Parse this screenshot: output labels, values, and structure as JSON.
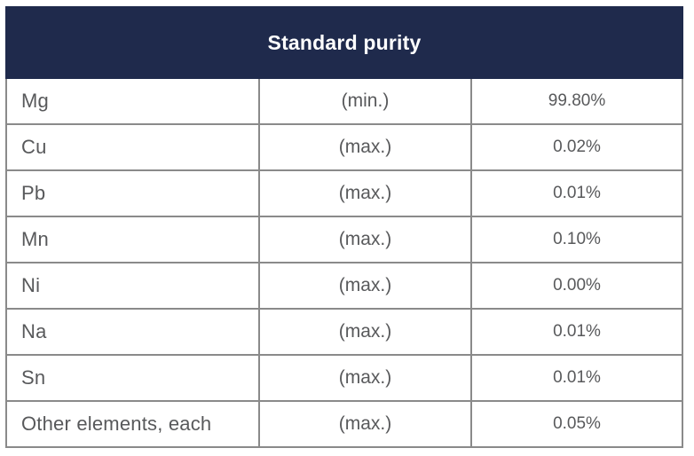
{
  "table": {
    "title": "Standard purity",
    "rows": [
      {
        "element": "Mg",
        "limit": "(min.)",
        "value": "99.80%"
      },
      {
        "element": "Cu",
        "limit": "(max.)",
        "value": "0.02%"
      },
      {
        "element": "Pb",
        "limit": "(max.)",
        "value": "0.01%"
      },
      {
        "element": "Mn",
        "limit": "(max.)",
        "value": "0.10%"
      },
      {
        "element": "Ni",
        "limit": "(max.)",
        "value": "0.00%"
      },
      {
        "element": "Na",
        "limit": "(max.)",
        "value": "0.01%"
      },
      {
        "element": "Sn",
        "limit": "(max.)",
        "value": "0.01%"
      },
      {
        "element": "Other elements, each",
        "limit": "(max.)",
        "value": "0.05%"
      }
    ],
    "colors": {
      "header_bg": "#1f2a4c",
      "header_text": "#ffffff",
      "body_text": "#58595b",
      "border": "#8a8a8a"
    }
  }
}
